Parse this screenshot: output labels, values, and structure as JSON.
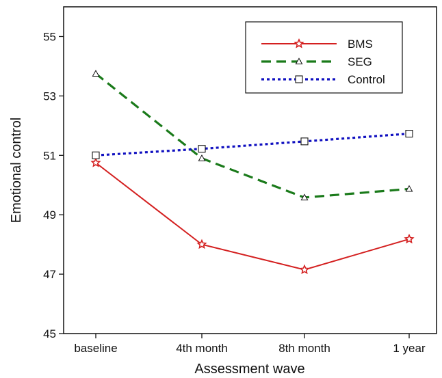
{
  "chart_data": {
    "type": "line",
    "title": "",
    "xlabel": "Assessment wave",
    "ylabel": "Emotional control",
    "categories": [
      "baseline",
      "4th month",
      "8th month",
      "1 year"
    ],
    "ylim": [
      45,
      56
    ],
    "yticks": [
      45,
      47,
      49,
      51,
      53,
      55
    ],
    "grid": false,
    "legend_position": "top-right",
    "series": [
      {
        "name": "BMS",
        "values": [
          50.75,
          48.0,
          47.15,
          48.18
        ],
        "color": "#d42020",
        "dash": "solid",
        "marker": "star"
      },
      {
        "name": "SEG",
        "values": [
          53.75,
          50.9,
          49.58,
          49.87
        ],
        "color": "#1a7a1a",
        "dash": "dashed",
        "marker": "triangle"
      },
      {
        "name": "Control",
        "values": [
          51.0,
          51.22,
          51.47,
          51.73
        ],
        "color": "#1010c0",
        "dash": "dotted",
        "marker": "square"
      }
    ]
  }
}
